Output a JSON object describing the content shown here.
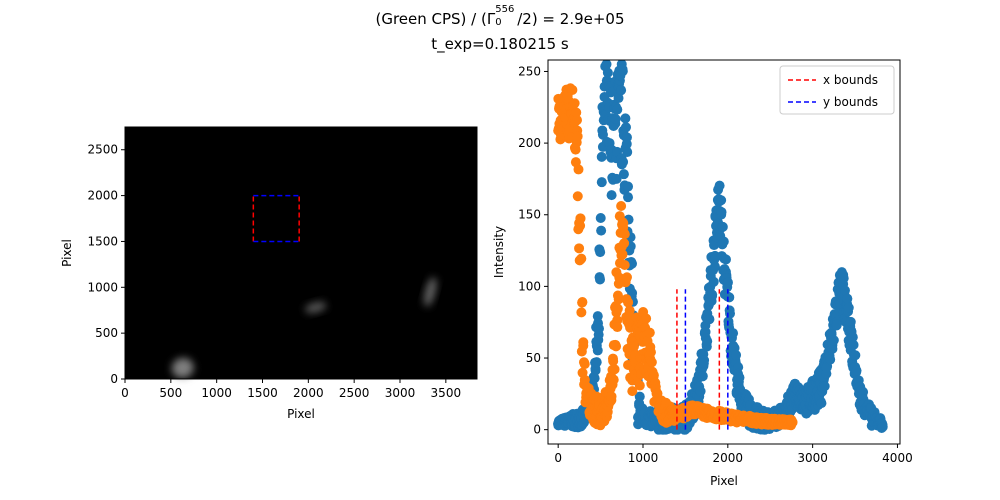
{
  "title": {
    "line1_prefix": "(Green CPS) / (Γ",
    "line1_sub": "0",
    "line1_sup": "556",
    "line1_suffix": "/2) = 2.9e+05",
    "line2": "t_exp=0.180215 s"
  },
  "chart_data": [
    {
      "type": "heatmap",
      "xlabel": "Pixel",
      "ylabel": "Pixel",
      "xlim": [
        0,
        3840
      ],
      "ylim": [
        0,
        2748
      ],
      "xticks": [
        0,
        500,
        1000,
        1500,
        2000,
        2500,
        3000,
        3500
      ],
      "yticks": [
        0,
        500,
        1000,
        1500,
        2000,
        2500
      ],
      "colormap": "gray",
      "background_color": "#000000",
      "bright_regions": [
        {
          "x": 630,
          "y": 120,
          "brightness": 0.55
        },
        {
          "x": 3330,
          "y": 950,
          "brightness": 0.35
        },
        {
          "x": 2080,
          "y": 780,
          "brightness": 0.25
        }
      ],
      "x_bounds": {
        "label": "x bounds",
        "color": "#ff0000",
        "values": [
          1400,
          1900
        ],
        "y_range": [
          1500,
          2000
        ]
      },
      "y_bounds": {
        "label": "y bounds",
        "color": "#0000ff",
        "values": [
          1500,
          2000
        ],
        "x_range": [
          1400,
          1900
        ]
      }
    },
    {
      "type": "scatter",
      "xlabel": "Pixel",
      "ylabel": "Intensity",
      "xlim": [
        -120,
        4030
      ],
      "ylim": [
        -10,
        258
      ],
      "xticks": [
        0,
        1000,
        2000,
        3000,
        4000
      ],
      "yticks": [
        0,
        50,
        100,
        150,
        200,
        250
      ],
      "grid": false,
      "legend_position": "top-right",
      "series": [
        {
          "color": "#1f77b4",
          "x_range": [
            0,
            3830
          ],
          "profile": [
            [
              0,
              5
            ],
            [
              150,
              6
            ],
            [
              300,
              8
            ],
            [
              400,
              20
            ],
            [
              480,
              80
            ],
            [
              520,
              200
            ],
            [
              560,
              230
            ],
            [
              600,
              210
            ],
            [
              650,
              200
            ],
            [
              700,
              215
            ],
            [
              750,
              220
            ],
            [
              800,
              195
            ],
            [
              850,
              120
            ],
            [
              900,
              45
            ],
            [
              950,
              15
            ],
            [
              1000,
              8
            ],
            [
              1200,
              6
            ],
            [
              1500,
              8
            ],
            [
              1650,
              25
            ],
            [
              1750,
              70
            ],
            [
              1850,
              130
            ],
            [
              1900,
              160
            ],
            [
              1950,
              120
            ],
            [
              2050,
              60
            ],
            [
              2150,
              20
            ],
            [
              2300,
              8
            ],
            [
              2500,
              6
            ],
            [
              2650,
              10
            ],
            [
              2800,
              25
            ],
            [
              2950,
              20
            ],
            [
              3100,
              30
            ],
            [
              3200,
              55
            ],
            [
              3300,
              90
            ],
            [
              3350,
              100
            ],
            [
              3420,
              75
            ],
            [
              3550,
              25
            ],
            [
              3700,
              8
            ],
            [
              3830,
              4
            ]
          ],
          "spread": [
            [
              0,
              2
            ],
            [
              400,
              8
            ],
            [
              600,
              40
            ],
            [
              800,
              40
            ],
            [
              900,
              25
            ],
            [
              1000,
              5
            ],
            [
              1700,
              12
            ],
            [
              1900,
              20
            ],
            [
              2200,
              10
            ],
            [
              2600,
              6
            ],
            [
              3300,
              15
            ],
            [
              3500,
              10
            ],
            [
              3830,
              3
            ]
          ]
        },
        {
          "color": "#ff7f0e",
          "x_range": [
            0,
            2760
          ],
          "profile": [
            [
              0,
              215
            ],
            [
              100,
              220
            ],
            [
              180,
              222
            ],
            [
              230,
              190
            ],
            [
              260,
              130
            ],
            [
              290,
              60
            ],
            [
              320,
              25
            ],
            [
              400,
              15
            ],
            [
              500,
              12
            ],
            [
              600,
              20
            ],
            [
              650,
              45
            ],
            [
              700,
              100
            ],
            [
              740,
              140
            ],
            [
              780,
              120
            ],
            [
              820,
              70
            ],
            [
              870,
              50
            ],
            [
              950,
              55
            ],
            [
              1050,
              60
            ],
            [
              1100,
              45
            ],
            [
              1150,
              25
            ],
            [
              1250,
              12
            ],
            [
              1400,
              10
            ],
            [
              1600,
              14
            ],
            [
              1700,
              12
            ],
            [
              1900,
              10
            ],
            [
              2100,
              8
            ],
            [
              2400,
              6
            ],
            [
              2760,
              5
            ]
          ],
          "spread": [
            [
              0,
              18
            ],
            [
              200,
              18
            ],
            [
              260,
              40
            ],
            [
              320,
              10
            ],
            [
              600,
              10
            ],
            [
              700,
              25
            ],
            [
              800,
              25
            ],
            [
              1000,
              25
            ],
            [
              1150,
              10
            ],
            [
              1400,
              4
            ],
            [
              2760,
              2
            ]
          ]
        }
      ],
      "bound_lines": [
        {
          "label": "x bounds",
          "color": "#ff0000",
          "x": [
            1400,
            1900
          ],
          "y_range": [
            0,
            98
          ]
        },
        {
          "label": "y bounds",
          "color": "#0000ff",
          "x": [
            1500,
            2000
          ],
          "y_range": [
            0,
            98
          ]
        }
      ]
    }
  ]
}
